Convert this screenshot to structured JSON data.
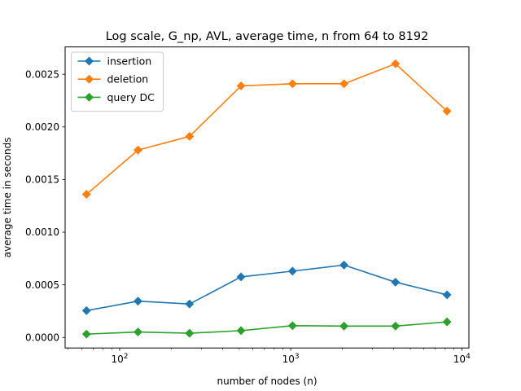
{
  "chart_data": {
    "type": "line",
    "title": "Log scale, G_np, AVL, average time, n from 64 to 8192",
    "xlabel": "number of nodes (n)",
    "ylabel": "average time in seconds",
    "xscale": "log",
    "xlim": [
      48,
      11000
    ],
    "ylim": [
      -0.0001,
      0.00276
    ],
    "x": [
      64,
      128,
      256,
      512,
      1024,
      2048,
      4096,
      8192
    ],
    "x_ticks": [
      {
        "value": 100,
        "base": "10",
        "exp": "2"
      },
      {
        "value": 1000,
        "base": "10",
        "exp": "3"
      },
      {
        "value": 10000,
        "base": "10",
        "exp": "4"
      }
    ],
    "y_ticks": [
      {
        "value": 0,
        "label": "0.0000"
      },
      {
        "value": 0.0005,
        "label": "0.0005"
      },
      {
        "value": 0.001,
        "label": "0.0010"
      },
      {
        "value": 0.0015,
        "label": "0.0015"
      },
      {
        "value": 0.002,
        "label": "0.0020"
      },
      {
        "value": 0.0025,
        "label": "0.0025"
      }
    ],
    "series": [
      {
        "name": "insertion",
        "color": "#1f77b4",
        "marker": "diamond",
        "values": [
          0.000255,
          0.000345,
          0.000318,
          0.000575,
          0.00063,
          0.000688,
          0.000525,
          0.000405
        ]
      },
      {
        "name": "deletion",
        "color": "#ff7f0e",
        "marker": "diamond",
        "values": [
          0.00136,
          0.00178,
          0.00191,
          0.00239,
          0.00241,
          0.00241,
          0.0026,
          0.00215
        ]
      },
      {
        "name": "query DC",
        "color": "#2ca02c",
        "marker": "diamond",
        "values": [
          3.2e-05,
          5.2e-05,
          4e-05,
          6.5e-05,
          0.000112,
          0.000108,
          0.000108,
          0.000148
        ]
      }
    ],
    "legend": "top-left",
    "grid": false
  }
}
